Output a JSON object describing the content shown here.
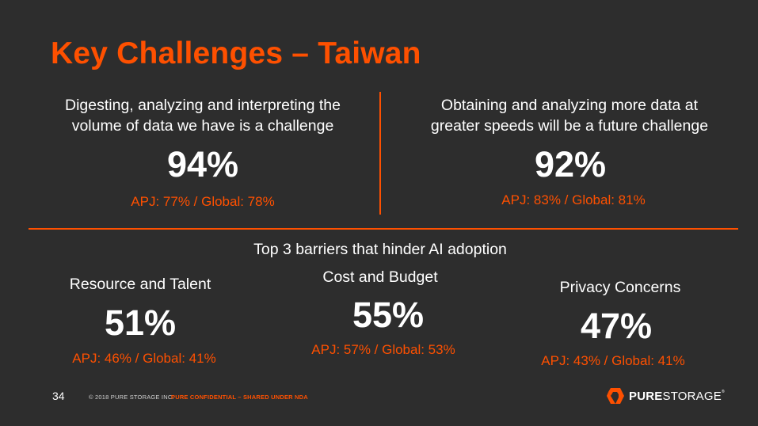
{
  "title": "Key Challenges – Taiwan",
  "stats_top": [
    {
      "statement_line1": "Digesting, analyzing and interpreting the",
      "statement_line2": "volume of data we have is a challenge",
      "value": "94%",
      "comparison": "APJ: 77% / Global: 78%"
    },
    {
      "statement_line1": "Obtaining and analyzing more data at",
      "statement_line2": "greater speeds will be a future challenge",
      "value": "92%",
      "comparison": "APJ: 83% / Global: 81%"
    }
  ],
  "barriers_heading": "Top 3 barriers that hinder AI adoption",
  "barriers": [
    {
      "label": "Resource and Talent",
      "value": "51%",
      "comparison": "APJ: 46% / Global: 41%"
    },
    {
      "label": "Cost and Budget",
      "value": "55%",
      "comparison": "APJ: 57% / Global: 53%"
    },
    {
      "label": "Privacy Concerns",
      "value": "47%",
      "comparison": "APJ: 43% / Global: 41%"
    }
  ],
  "footer": {
    "page_number": "34",
    "copyright": "© 2018 PURE STORAGE INC.",
    "confidential": "PURE CONFIDENTIAL – SHARED UNDER NDA",
    "logo_pure": "PURE",
    "logo_storage": "STORAGE",
    "logo_tm": "®"
  },
  "colors": {
    "background": "#2d2d2d",
    "accent": "#fe5000",
    "text": "#ffffff"
  }
}
